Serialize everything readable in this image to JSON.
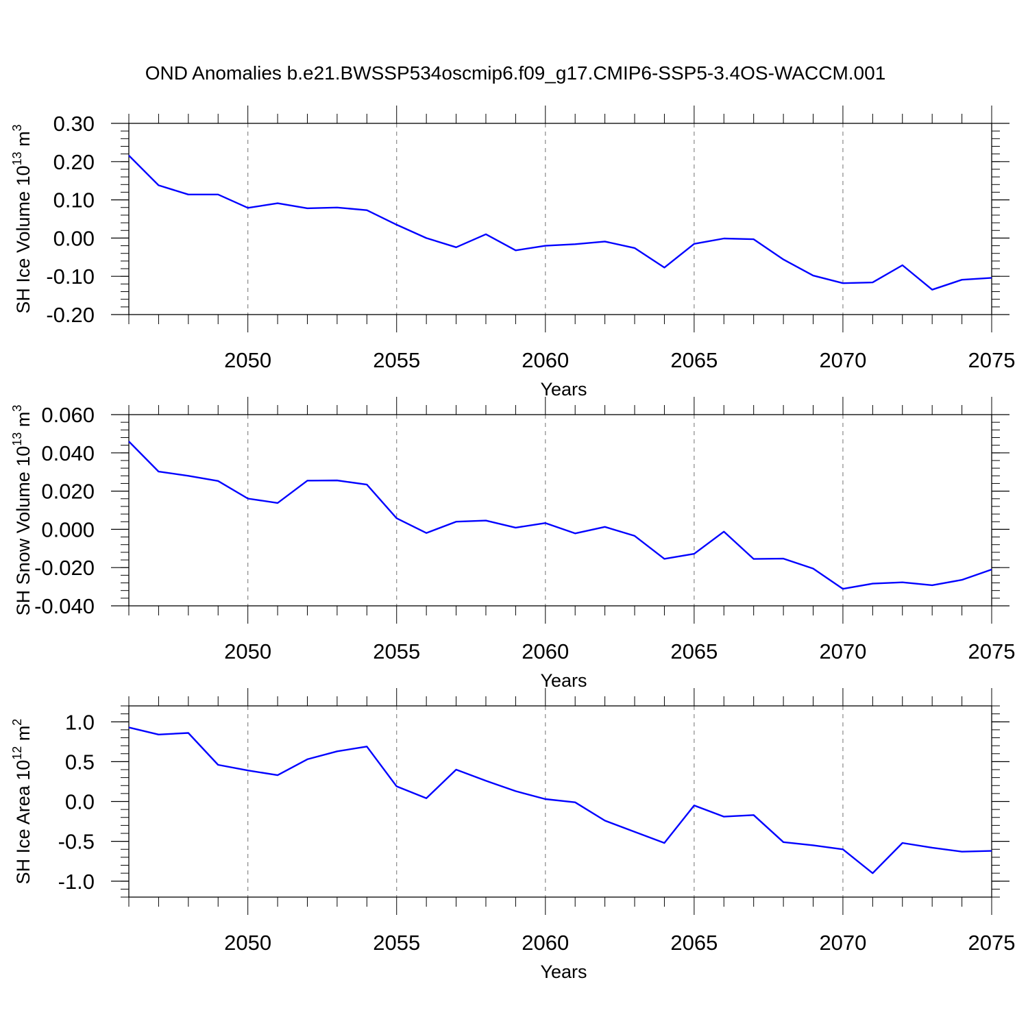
{
  "title": "OND Anomalies b.e21.BWSSP534oscmip6.f09_g17.CMIP6-SSP5-3.4OS-WACCM.001",
  "colors": {
    "series": "#0000ff",
    "frame": "#000000",
    "grid": "#888888"
  },
  "chart_data": [
    {
      "type": "line",
      "ylabel": "SH Ice Volume 10",
      "ylabel_exp": "13",
      "ylabel_unit": " m",
      "ylabel_unit_exp": "3",
      "xlabel": "Years",
      "xlim": [
        2046,
        2075
      ],
      "ylim": [
        -0.2,
        0.3
      ],
      "yticks": [
        -0.2,
        -0.1,
        0.0,
        0.1,
        0.2,
        0.3
      ],
      "ytick_labels": [
        "-0.20",
        "-0.10",
        "0.00",
        "0.10",
        "0.20",
        "0.30"
      ],
      "yminor_step": 0.02,
      "xticks": [
        2050,
        2055,
        2060,
        2065,
        2070,
        2075
      ],
      "xtick_labels": [
        "2050",
        "2055",
        "2060",
        "2065",
        "2070",
        "2075"
      ],
      "x": [
        2046,
        2047,
        2048,
        2049,
        2050,
        2051,
        2052,
        2053,
        2054,
        2055,
        2056,
        2057,
        2058,
        2059,
        2060,
        2061,
        2062,
        2063,
        2064,
        2065,
        2066,
        2067,
        2068,
        2069,
        2070,
        2071,
        2072,
        2073,
        2074,
        2075
      ],
      "values": [
        0.216,
        0.138,
        0.114,
        0.114,
        0.079,
        0.091,
        0.078,
        0.08,
        0.073,
        0.035,
        0.0,
        -0.024,
        0.01,
        -0.032,
        -0.02,
        -0.016,
        -0.009,
        -0.026,
        -0.077,
        -0.015,
        -0.001,
        -0.003,
        -0.056,
        -0.098,
        -0.118,
        -0.116,
        -0.071,
        -0.135,
        -0.109,
        -0.104
      ]
    },
    {
      "type": "line",
      "ylabel": "SH Snow Volume 10",
      "ylabel_exp": "13",
      "ylabel_unit": " m",
      "ylabel_unit_exp": "3",
      "xlabel": "Years",
      "xlim": [
        2046,
        2075
      ],
      "ylim": [
        -0.04,
        0.06
      ],
      "yticks": [
        -0.04,
        -0.02,
        0.0,
        0.02,
        0.04,
        0.06
      ],
      "ytick_labels": [
        "-0.040",
        "-0.020",
        "0.000",
        "0.020",
        "0.040",
        "0.060"
      ],
      "yminor_step": 0.004,
      "xticks": [
        2050,
        2055,
        2060,
        2065,
        2070,
        2075
      ],
      "xtick_labels": [
        "2050",
        "2055",
        "2060",
        "2065",
        "2070",
        "2075"
      ],
      "x": [
        2046,
        2047,
        2048,
        2049,
        2050,
        2051,
        2052,
        2053,
        2054,
        2055,
        2056,
        2057,
        2058,
        2059,
        2060,
        2061,
        2062,
        2063,
        2064,
        2065,
        2066,
        2067,
        2068,
        2069,
        2070,
        2071,
        2072,
        2073,
        2074,
        2075
      ],
      "values": [
        0.046,
        0.0302,
        0.028,
        0.0253,
        0.0161,
        0.0138,
        0.0255,
        0.0256,
        0.0234,
        0.0058,
        -0.0019,
        0.004,
        0.0046,
        0.0009,
        0.0033,
        -0.0021,
        0.0013,
        -0.0034,
        -0.0154,
        -0.0128,
        -0.0012,
        -0.0155,
        -0.0153,
        -0.0205,
        -0.0311,
        -0.0284,
        -0.0277,
        -0.0292,
        -0.0264,
        -0.021
      ]
    },
    {
      "type": "line",
      "ylabel": "SH Ice Area 10",
      "ylabel_exp": "12",
      "ylabel_unit": " m",
      "ylabel_unit_exp": "2",
      "xlabel": "Years",
      "xlim": [
        2046,
        2075
      ],
      "ylim": [
        -1.2,
        1.2
      ],
      "yticks": [
        -1.0,
        -0.5,
        0.0,
        0.5,
        1.0
      ],
      "ytick_labels": [
        "-1.0",
        "-0.5",
        "0.0",
        "0.5",
        "1.0"
      ],
      "yminor_step": 0.1,
      "xticks": [
        2050,
        2055,
        2060,
        2065,
        2070,
        2075
      ],
      "xtick_labels": [
        "2050",
        "2055",
        "2060",
        "2065",
        "2070",
        "2075"
      ],
      "x": [
        2046,
        2047,
        2048,
        2049,
        2050,
        2051,
        2052,
        2053,
        2054,
        2055,
        2056,
        2057,
        2058,
        2059,
        2060,
        2061,
        2062,
        2063,
        2064,
        2065,
        2066,
        2067,
        2068,
        2069,
        2070,
        2071,
        2072,
        2073,
        2074,
        2075
      ],
      "values": [
        0.93,
        0.84,
        0.86,
        0.46,
        0.39,
        0.33,
        0.53,
        0.63,
        0.69,
        0.19,
        0.04,
        0.4,
        0.26,
        0.13,
        0.03,
        -0.01,
        -0.24,
        -0.38,
        -0.52,
        -0.05,
        -0.19,
        -0.17,
        -0.51,
        -0.55,
        -0.6,
        -0.9,
        -0.52,
        -0.58,
        -0.63,
        -0.62
      ]
    }
  ]
}
